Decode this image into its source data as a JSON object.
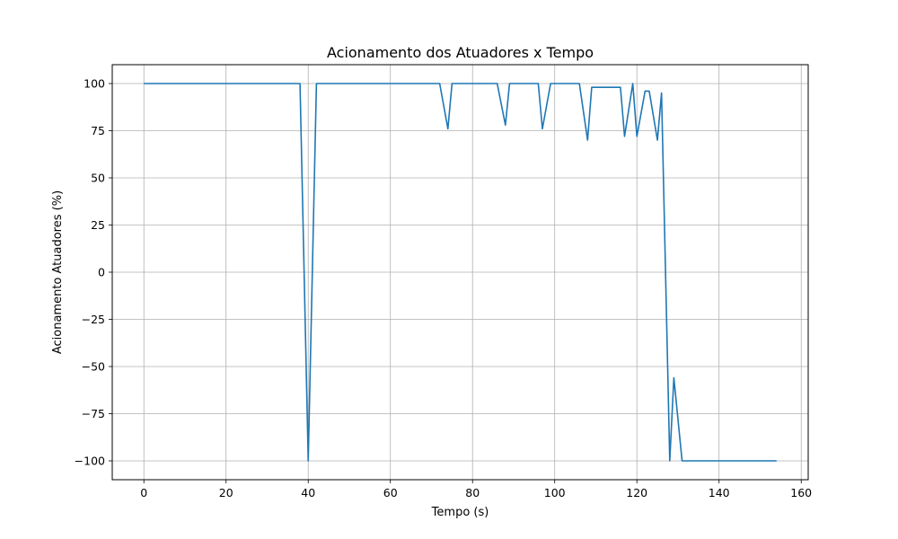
{
  "chart_data": {
    "type": "line",
    "title": "Acionamento dos Atuadores x Tempo",
    "xlabel": "Tempo (s)",
    "ylabel": "Acionamento Atuadores (%)",
    "xlim": [
      -7.7,
      161.7
    ],
    "ylim": [
      -110,
      110
    ],
    "xticks": [
      0,
      20,
      40,
      60,
      80,
      100,
      120,
      140,
      160
    ],
    "yticks": [
      100,
      75,
      50,
      25,
      0,
      -25,
      -50,
      -75,
      -100
    ],
    "xtick_labels": [
      "0",
      "20",
      "40",
      "60",
      "80",
      "100",
      "120",
      "140",
      "160"
    ],
    "ytick_labels": [
      "100",
      "75",
      "50",
      "25",
      "0",
      "−25",
      "−50",
      "−75",
      "−100"
    ],
    "grid": true,
    "line_color": "#1f77b4",
    "series": [
      {
        "x": [
          0,
          38,
          40,
          42,
          72,
          74,
          75,
          86,
          88,
          89,
          96,
          97,
          99,
          106,
          108,
          109,
          116,
          117,
          119,
          120,
          122,
          123,
          125,
          126,
          128,
          129,
          131,
          154
        ],
        "y": [
          100,
          100,
          -100,
          100,
          100,
          76,
          100,
          100,
          78,
          100,
          100,
          76,
          100,
          100,
          70,
          98,
          98,
          72,
          100,
          72,
          96,
          96,
          70,
          95,
          -100,
          -56,
          -100,
          -100
        ]
      }
    ]
  }
}
